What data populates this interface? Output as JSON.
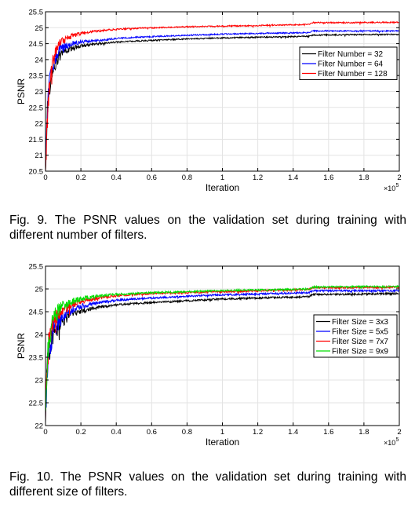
{
  "chart_data": [
    {
      "type": "line",
      "title": "",
      "xlabel": "Iteration",
      "ylabel": "PSNR",
      "xlim": [
        0,
        200000
      ],
      "ylim": [
        20.5,
        25.5
      ],
      "x_exponent_label": "×10",
      "x_exponent_power": "5",
      "x_ticks": [
        0,
        20000,
        40000,
        60000,
        80000,
        100000,
        120000,
        140000,
        160000,
        180000,
        200000
      ],
      "x_tick_labels": [
        "0",
        "0.2",
        "0.4",
        "0.6",
        "0.8",
        "1",
        "1.2",
        "1.4",
        "1.6",
        "1.8",
        "2"
      ],
      "y_ticks": [
        20.5,
        21,
        21.5,
        22,
        22.5,
        23,
        23.5,
        24,
        24.5,
        25,
        25.5
      ],
      "y_tick_labels": [
        "20.5",
        "21",
        "21.5",
        "22",
        "22.5",
        "23",
        "23.5",
        "24",
        "24.5",
        "25",
        "25.5"
      ],
      "grid": true,
      "legend_position": "upper-right",
      "series": [
        {
          "name": "Filter Number = 32",
          "color": "#000000",
          "x": [
            0,
            1000,
            2000,
            4000,
            6000,
            8000,
            10000,
            15000,
            20000,
            30000,
            40000,
            50000,
            60000,
            80000,
            100000,
            120000,
            140000,
            149000,
            151000,
            170000,
            200000
          ],
          "y": [
            20.7,
            22.3,
            23.0,
            23.6,
            23.9,
            24.1,
            24.25,
            24.35,
            24.42,
            24.5,
            24.55,
            24.58,
            24.6,
            24.65,
            24.68,
            24.7,
            24.72,
            24.73,
            24.77,
            24.78,
            24.79
          ]
        },
        {
          "name": "Filter Number = 64",
          "color": "#0000ff",
          "x": [
            0,
            1000,
            2000,
            4000,
            6000,
            8000,
            10000,
            15000,
            20000,
            30000,
            40000,
            50000,
            60000,
            80000,
            100000,
            120000,
            140000,
            149000,
            151000,
            170000,
            200000
          ],
          "y": [
            20.8,
            22.5,
            23.2,
            23.8,
            24.1,
            24.3,
            24.4,
            24.5,
            24.55,
            24.6,
            24.66,
            24.7,
            24.72,
            24.76,
            24.8,
            24.82,
            24.84,
            24.85,
            24.9,
            24.9,
            24.9
          ]
        },
        {
          "name": "Filter Number = 128",
          "color": "#ff0000",
          "x": [
            0,
            1000,
            2000,
            4000,
            6000,
            8000,
            10000,
            15000,
            20000,
            30000,
            40000,
            50000,
            60000,
            80000,
            100000,
            120000,
            140000,
            149000,
            151000,
            170000,
            200000
          ],
          "y": [
            20.6,
            22.0,
            23.0,
            23.9,
            24.3,
            24.5,
            24.6,
            24.75,
            24.82,
            24.9,
            24.95,
            24.98,
            25.0,
            25.03,
            25.05,
            25.07,
            25.09,
            25.1,
            25.16,
            25.16,
            25.17
          ]
        }
      ]
    },
    {
      "type": "line",
      "title": "",
      "xlabel": "Iteration",
      "ylabel": "PSNR",
      "xlim": [
        0,
        200000
      ],
      "ylim": [
        22,
        25.5
      ],
      "x_exponent_label": "×10",
      "x_exponent_power": "5",
      "x_ticks": [
        0,
        20000,
        40000,
        60000,
        80000,
        100000,
        120000,
        140000,
        160000,
        180000,
        200000
      ],
      "x_tick_labels": [
        "0",
        "0.2",
        "0.4",
        "0.6",
        "0.8",
        "1",
        "1.2",
        "1.4",
        "1.6",
        "1.8",
        "2"
      ],
      "y_ticks": [
        22,
        22.5,
        23,
        23.5,
        24,
        24.5,
        25,
        25.5
      ],
      "y_tick_labels": [
        "22",
        "22.5",
        "23",
        "23.5",
        "24",
        "24.5",
        "25",
        "25.5"
      ],
      "grid": true,
      "legend_position": "right",
      "series": [
        {
          "name": "Filter Size = 3x3",
          "color": "#000000",
          "x": [
            0,
            1000,
            2000,
            4000,
            6000,
            8000,
            10000,
            15000,
            20000,
            30000,
            40000,
            50000,
            60000,
            80000,
            100000,
            120000,
            140000,
            149000,
            151000,
            170000,
            200000
          ],
          "y": [
            22.2,
            23.2,
            23.6,
            23.9,
            24.1,
            24.2,
            24.3,
            24.45,
            24.52,
            24.6,
            24.65,
            24.68,
            24.7,
            24.74,
            24.78,
            24.8,
            24.82,
            24.83,
            24.88,
            24.88,
            24.9
          ]
        },
        {
          "name": "Filter Size = 5x5",
          "color": "#0000ff",
          "x": [
            0,
            1000,
            2000,
            4000,
            6000,
            8000,
            10000,
            15000,
            20000,
            30000,
            40000,
            50000,
            60000,
            80000,
            100000,
            120000,
            140000,
            149000,
            151000,
            170000,
            200000
          ],
          "y": [
            22.3,
            23.3,
            23.7,
            24.0,
            24.2,
            24.3,
            24.4,
            24.55,
            24.62,
            24.7,
            24.75,
            24.78,
            24.8,
            24.84,
            24.87,
            24.89,
            24.91,
            24.92,
            24.96,
            24.96,
            24.96
          ]
        },
        {
          "name": "Filter Size = 7x7",
          "color": "#ff0000",
          "x": [
            0,
            1000,
            2000,
            4000,
            6000,
            8000,
            10000,
            15000,
            20000,
            30000,
            40000,
            50000,
            60000,
            80000,
            100000,
            120000,
            140000,
            149000,
            151000,
            170000,
            200000
          ],
          "y": [
            22.2,
            23.4,
            23.8,
            24.15,
            24.35,
            24.45,
            24.55,
            24.65,
            24.72,
            24.8,
            24.85,
            24.88,
            24.9,
            24.92,
            24.94,
            24.96,
            24.98,
            24.99,
            25.03,
            25.03,
            25.04
          ]
        },
        {
          "name": "Filter Size = 9x9",
          "color": "#00dd00",
          "x": [
            0,
            1000,
            2000,
            4000,
            6000,
            8000,
            10000,
            15000,
            20000,
            30000,
            40000,
            50000,
            60000,
            80000,
            100000,
            120000,
            140000,
            149000,
            151000,
            170000,
            200000
          ],
          "y": [
            22.4,
            23.5,
            23.9,
            24.25,
            24.45,
            24.55,
            24.62,
            24.72,
            24.78,
            24.85,
            24.88,
            24.9,
            24.92,
            24.94,
            24.96,
            24.98,
            24.99,
            25.0,
            25.04,
            25.05,
            25.05
          ]
        }
      ]
    }
  ],
  "captions": {
    "fig9": "Fig. 9.  The PSNR values on the validation set during training with different number of filters.",
    "fig10": "Fig. 10.  The PSNR values on the validation set during training with different size of filters."
  }
}
